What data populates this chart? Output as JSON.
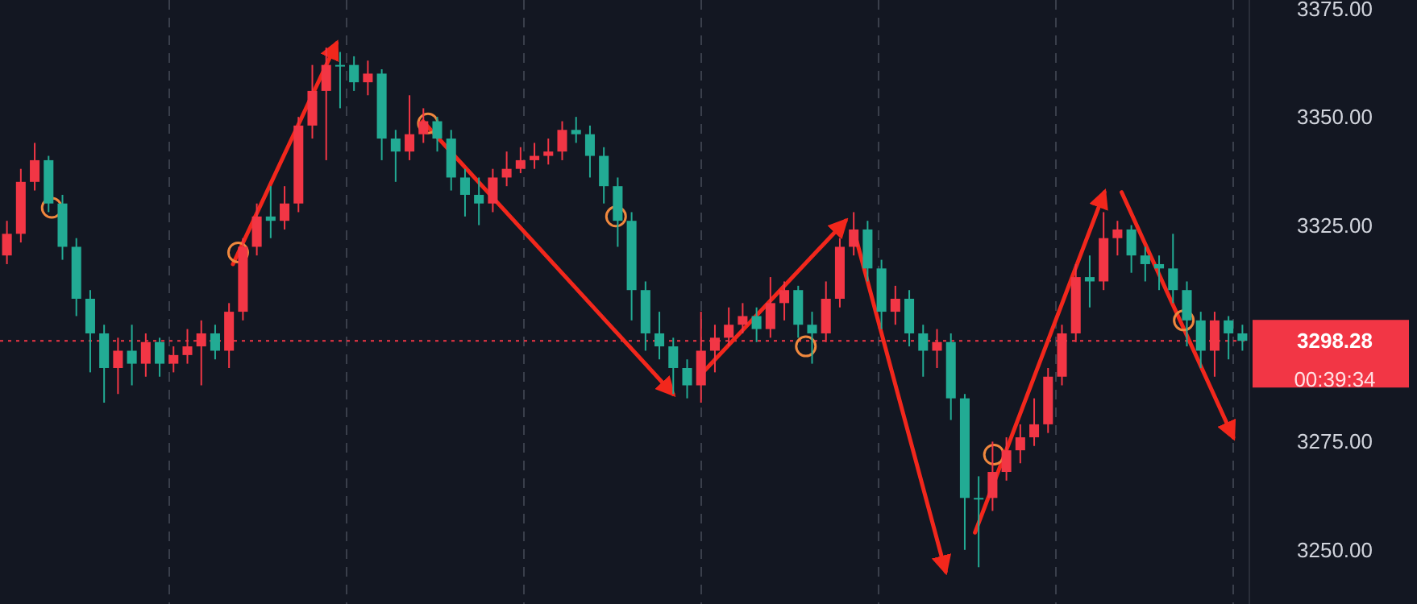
{
  "chart_data": {
    "type": "candlestick",
    "categories": [
      null,
      null,
      null,
      null,
      null,
      null,
      null,
      null,
      null,
      null,
      null,
      null,
      null,
      null,
      null,
      null,
      null,
      null,
      null,
      null,
      null,
      null,
      null,
      null,
      null,
      null,
      null,
      null,
      null,
      null,
      null,
      null,
      null,
      null,
      null,
      null,
      null,
      null,
      null,
      null,
      null,
      null,
      null,
      null,
      null,
      null,
      null,
      null,
      null,
      null,
      null,
      null,
      null,
      null,
      null,
      null,
      null,
      null,
      null,
      null,
      null,
      null,
      null,
      null,
      null,
      null,
      null,
      null,
      null,
      null,
      null,
      null,
      null,
      null,
      null,
      null,
      null,
      null,
      null,
      null,
      null,
      null,
      null,
      null,
      null,
      null,
      null,
      null,
      null,
      null
    ],
    "ohlc": [
      [
        3318,
        3326,
        3316,
        3323
      ],
      [
        3323,
        3338,
        3321,
        3335
      ],
      [
        3335,
        3344,
        3333,
        3340
      ],
      [
        3340,
        3341,
        3328,
        3330
      ],
      [
        3330,
        3332,
        3317,
        3320
      ],
      [
        3320,
        3322,
        3304,
        3308
      ],
      [
        3308,
        3310,
        3291,
        3300
      ],
      [
        3300,
        3302,
        3284,
        3292
      ],
      [
        3292,
        3299,
        3286,
        3296
      ],
      [
        3296,
        3302,
        3288,
        3293
      ],
      [
        3293,
        3300,
        3290,
        3298
      ],
      [
        3298,
        3299,
        3290,
        3293
      ],
      [
        3293,
        3297,
        3291,
        3295
      ],
      [
        3295,
        3301,
        3293,
        3297
      ],
      [
        3297,
        3303,
        3288,
        3300
      ],
      [
        3300,
        3302,
        3294,
        3296
      ],
      [
        3296,
        3307,
        3292,
        3305
      ],
      [
        3305,
        3322,
        3303,
        3320
      ],
      [
        3320,
        3330,
        3318,
        3327
      ],
      [
        3327,
        3334,
        3322,
        3326
      ],
      [
        3326,
        3334,
        3324,
        3330
      ],
      [
        3330,
        3350,
        3328,
        3348
      ],
      [
        3348,
        3362,
        3345,
        3356
      ],
      [
        3356,
        3366,
        3340,
        3362
      ],
      [
        3362,
        3365,
        3352,
        3362
      ],
      [
        3362,
        3364,
        3356,
        3358
      ],
      [
        3358,
        3363,
        3355,
        3360
      ],
      [
        3360,
        3361,
        3340,
        3345
      ],
      [
        3345,
        3347,
        3335,
        3342
      ],
      [
        3342,
        3355,
        3340,
        3346
      ],
      [
        3346,
        3352,
        3344,
        3349
      ],
      [
        3349,
        3350,
        3342,
        3345
      ],
      [
        3345,
        3347,
        3333,
        3336
      ],
      [
        3336,
        3338,
        3327,
        3332
      ],
      [
        3332,
        3336,
        3325,
        3330
      ],
      [
        3330,
        3338,
        3328,
        3336
      ],
      [
        3336,
        3342,
        3334,
        3338
      ],
      [
        3338,
        3343,
        3337,
        3340
      ],
      [
        3340,
        3344,
        3338,
        3341
      ],
      [
        3341,
        3345,
        3339,
        3342
      ],
      [
        3342,
        3349,
        3340,
        3347
      ],
      [
        3347,
        3350,
        3344,
        3346
      ],
      [
        3346,
        3348,
        3336,
        3341
      ],
      [
        3341,
        3343,
        3330,
        3334
      ],
      [
        3334,
        3336,
        3320,
        3326
      ],
      [
        3326,
        3328,
        3303,
        3310
      ],
      [
        3310,
        3312,
        3296,
        3300
      ],
      [
        3300,
        3305,
        3294,
        3297
      ],
      [
        3297,
        3299,
        3286,
        3292
      ],
      [
        3292,
        3294,
        3285,
        3288
      ],
      [
        3288,
        3305,
        3284,
        3296
      ],
      [
        3296,
        3302,
        3291,
        3299
      ],
      [
        3299,
        3306,
        3297,
        3302
      ],
      [
        3302,
        3307,
        3300,
        3304
      ],
      [
        3304,
        3306,
        3298,
        3301
      ],
      [
        3301,
        3313,
        3299,
        3307
      ],
      [
        3307,
        3312,
        3303,
        3310
      ],
      [
        3310,
        3311,
        3299,
        3302
      ],
      [
        3302,
        3305,
        3293,
        3300
      ],
      [
        3300,
        3312,
        3298,
        3308
      ],
      [
        3308,
        3322,
        3306,
        3320
      ],
      [
        3320,
        3328,
        3318,
        3324
      ],
      [
        3324,
        3326,
        3312,
        3315
      ],
      [
        3315,
        3317,
        3301,
        3305
      ],
      [
        3305,
        3311,
        3302,
        3308
      ],
      [
        3308,
        3310,
        3297,
        3300
      ],
      [
        3300,
        3302,
        3290,
        3296
      ],
      [
        3296,
        3301,
        3292,
        3298
      ],
      [
        3298,
        3300,
        3280,
        3285
      ],
      [
        3285,
        3286,
        3250,
        3262
      ],
      [
        3262,
        3267,
        3246,
        3262
      ],
      [
        3262,
        3275,
        3259,
        3268
      ],
      [
        3268,
        3276,
        3266,
        3273
      ],
      [
        3273,
        3279,
        3270,
        3276
      ],
      [
        3276,
        3285,
        3274,
        3279
      ],
      [
        3279,
        3292,
        3277,
        3290
      ],
      [
        3290,
        3302,
        3288,
        3300
      ],
      [
        3300,
        3316,
        3298,
        3313
      ],
      [
        3313,
        3318,
        3306,
        3312
      ],
      [
        3312,
        3328,
        3310,
        3322
      ],
      [
        3322,
        3326,
        3318,
        3324
      ],
      [
        3324,
        3325,
        3314,
        3318
      ],
      [
        3318,
        3320,
        3312,
        3316
      ],
      [
        3316,
        3318,
        3310,
        3315
      ],
      [
        3315,
        3323,
        3307,
        3310
      ],
      [
        3310,
        3312,
        3297,
        3303
      ],
      [
        3303,
        3305,
        3292,
        3296
      ],
      [
        3296,
        3305,
        3290,
        3303
      ],
      [
        3303,
        3304,
        3294,
        3300
      ],
      [
        3300,
        3302,
        3296,
        3298.28
      ]
    ],
    "colors": [
      "#f23645",
      "#f23645",
      "#f23645",
      "#22ab94",
      "#22ab94",
      "#22ab94",
      "#22ab94",
      "#22ab94",
      "#f23645",
      "#22ab94",
      "#f23645",
      "#22ab94",
      "#f23645",
      "#f23645",
      "#f23645",
      "#22ab94",
      "#f23645",
      "#f23645",
      "#f23645",
      "#22ab94",
      "#f23645",
      "#f23645",
      "#f23645",
      "#f23645",
      "#22ab94",
      "#22ab94",
      "#f23645",
      "#22ab94",
      "#22ab94",
      "#f23645",
      "#f23645",
      "#22ab94",
      "#22ab94",
      "#22ab94",
      "#22ab94",
      "#f23645",
      "#f23645",
      "#f23645",
      "#f23645",
      "#f23645",
      "#f23645",
      "#22ab94",
      "#22ab94",
      "#22ab94",
      "#22ab94",
      "#22ab94",
      "#22ab94",
      "#22ab94",
      "#22ab94",
      "#22ab94",
      "#f23645",
      "#f23645",
      "#f23645",
      "#f23645",
      "#22ab94",
      "#f23645",
      "#f23645",
      "#22ab94",
      "#22ab94",
      "#f23645",
      "#f23645",
      "#f23645",
      "#22ab94",
      "#22ab94",
      "#f23645",
      "#22ab94",
      "#22ab94",
      "#f23645",
      "#22ab94",
      "#22ab94",
      "#22ab94",
      "#f23645",
      "#f23645",
      "#f23645",
      "#f23645",
      "#f23645",
      "#f23645",
      "#f23645",
      "#22ab94",
      "#f23645",
      "#f23645",
      "#22ab94",
      "#22ab94",
      "#22ab94",
      "#22ab94",
      "#22ab94",
      "#22ab94",
      "#f23645",
      "#22ab94",
      "#22ab94"
    ],
    "ylim": [
      3237.5,
      3377
    ],
    "yticks": [
      {
        "value": 3250,
        "label": "3250.00"
      },
      {
        "value": 3275,
        "label": "3275.00"
      },
      {
        "value": 3325,
        "label": "3325.00"
      },
      {
        "value": 3350,
        "label": "3350.00"
      },
      {
        "value": 3375,
        "label": "3375.00"
      }
    ],
    "tick_labels": "y",
    "ref_lines": [
      {
        "axis": "y",
        "value": 3298.28,
        "label": "3298.28",
        "color": "#f23645",
        "line_style": "dotted"
      }
    ],
    "annotations": [
      "00:39:34"
    ]
  }
}
